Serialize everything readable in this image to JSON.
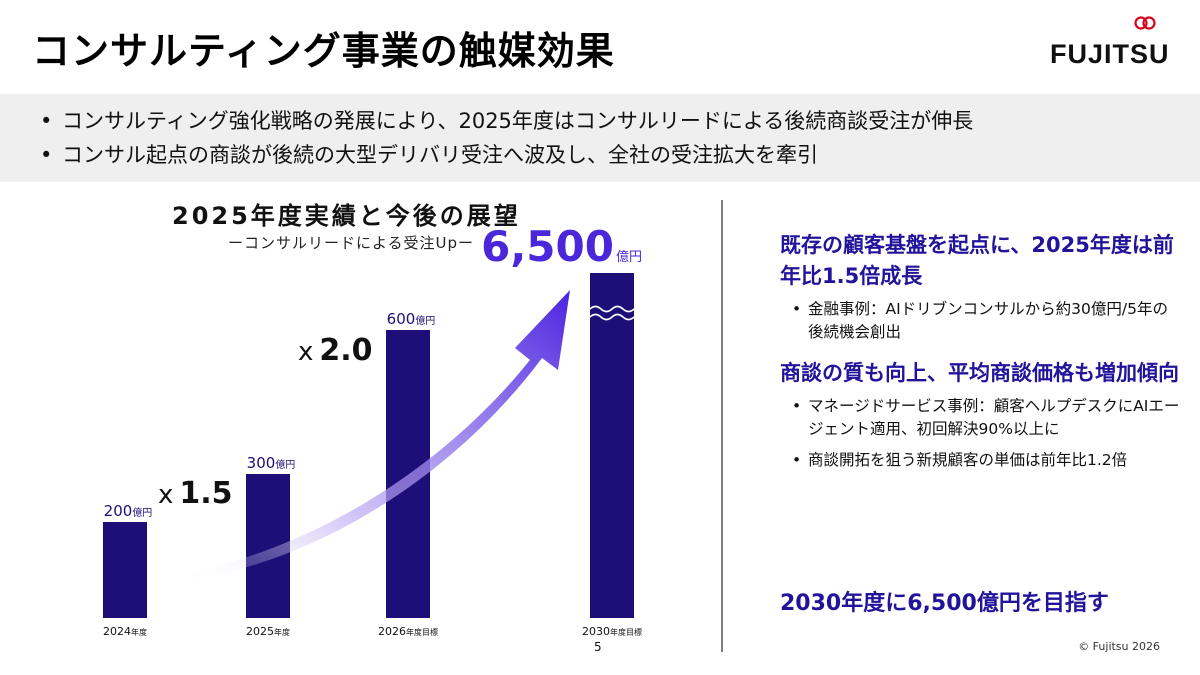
{
  "header": {
    "title": "コンサルティング事業の触媒効果",
    "logo_text": "FUJITSU"
  },
  "summary": {
    "bullets": [
      "コンサルティング強化戦略の発展により、2025年度はコンサルリードによる後続商談受注が伸長",
      "コンサル起点の商談が後続の大型デリバリ受注へ波及し、全社の受注拡大を牽引"
    ]
  },
  "chart_data": {
    "type": "bar",
    "title": "2025年度実績と今後の展望",
    "subtitle": "ーコンサルリードによる受注Upー",
    "categories": [
      "2024",
      "2025",
      "2026",
      "2030"
    ],
    "category_suffixes": [
      "年度",
      "年度",
      "年度目標",
      "年度目標"
    ],
    "values": [
      200,
      300,
      600,
      6500
    ],
    "value_labels": [
      "200",
      "300",
      "600",
      "6,500"
    ],
    "unit": "億円",
    "axis_break": true,
    "multipliers": [
      {
        "prefix": "x",
        "value": "1.5"
      },
      {
        "prefix": "x",
        "value": "2.0"
      }
    ],
    "colors": {
      "bar": "#1d0f77",
      "accent": "#4a28d9"
    }
  },
  "right_panel": {
    "sections": [
      {
        "heading": "既存の顧客基盤を起点に、2025年度は前年比1.5倍成長",
        "items": [
          "金融事例：AIドリブンコンサルから約30億円/5年の後続機会創出"
        ]
      },
      {
        "heading": "商談の質も向上、平均商談価格も増加傾向",
        "items": [
          "マネージドサービス事例：顧客ヘルプデスクにAIエージェント適用、初回解決90%以上に",
          "商談開拓を狙う新規顧客の単価は前年比1.2倍"
        ]
      }
    ],
    "goal": "2030年度に6,500億円を目指す"
  },
  "footer": {
    "page_number": "5",
    "copyright": "© Fujitsu 2026"
  }
}
